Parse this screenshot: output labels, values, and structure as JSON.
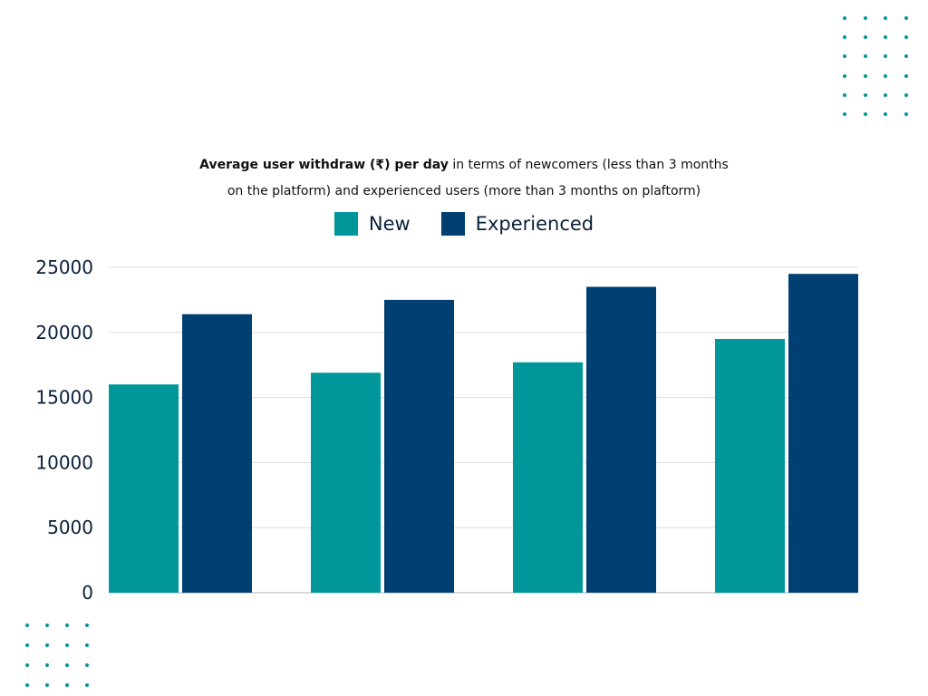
{
  "chart_data": {
    "type": "bar",
    "title_bold": "Average user withdraw (₹) per day",
    "title_rest_line1": " in terms of newcomers (less than 3 months",
    "title_line2": "on the platform) and experienced users (more than 3 months on plaftorm)",
    "categories": [
      "",
      "",
      "",
      ""
    ],
    "series": [
      {
        "name": "New",
        "values": [
          16000,
          16900,
          17700,
          19500
        ],
        "color": "#00969a"
      },
      {
        "name": "Experienced",
        "values": [
          21400,
          22500,
          23500,
          24500
        ],
        "color": "#003f72"
      }
    ],
    "ylim": [
      0,
      25000
    ],
    "yticks": [
      0,
      5000,
      10000,
      15000,
      20000,
      25000
    ],
    "grid": true,
    "legend_position": "top-center",
    "xlabel": "",
    "ylabel": ""
  },
  "decor": {
    "dot_color": "#00969a"
  }
}
